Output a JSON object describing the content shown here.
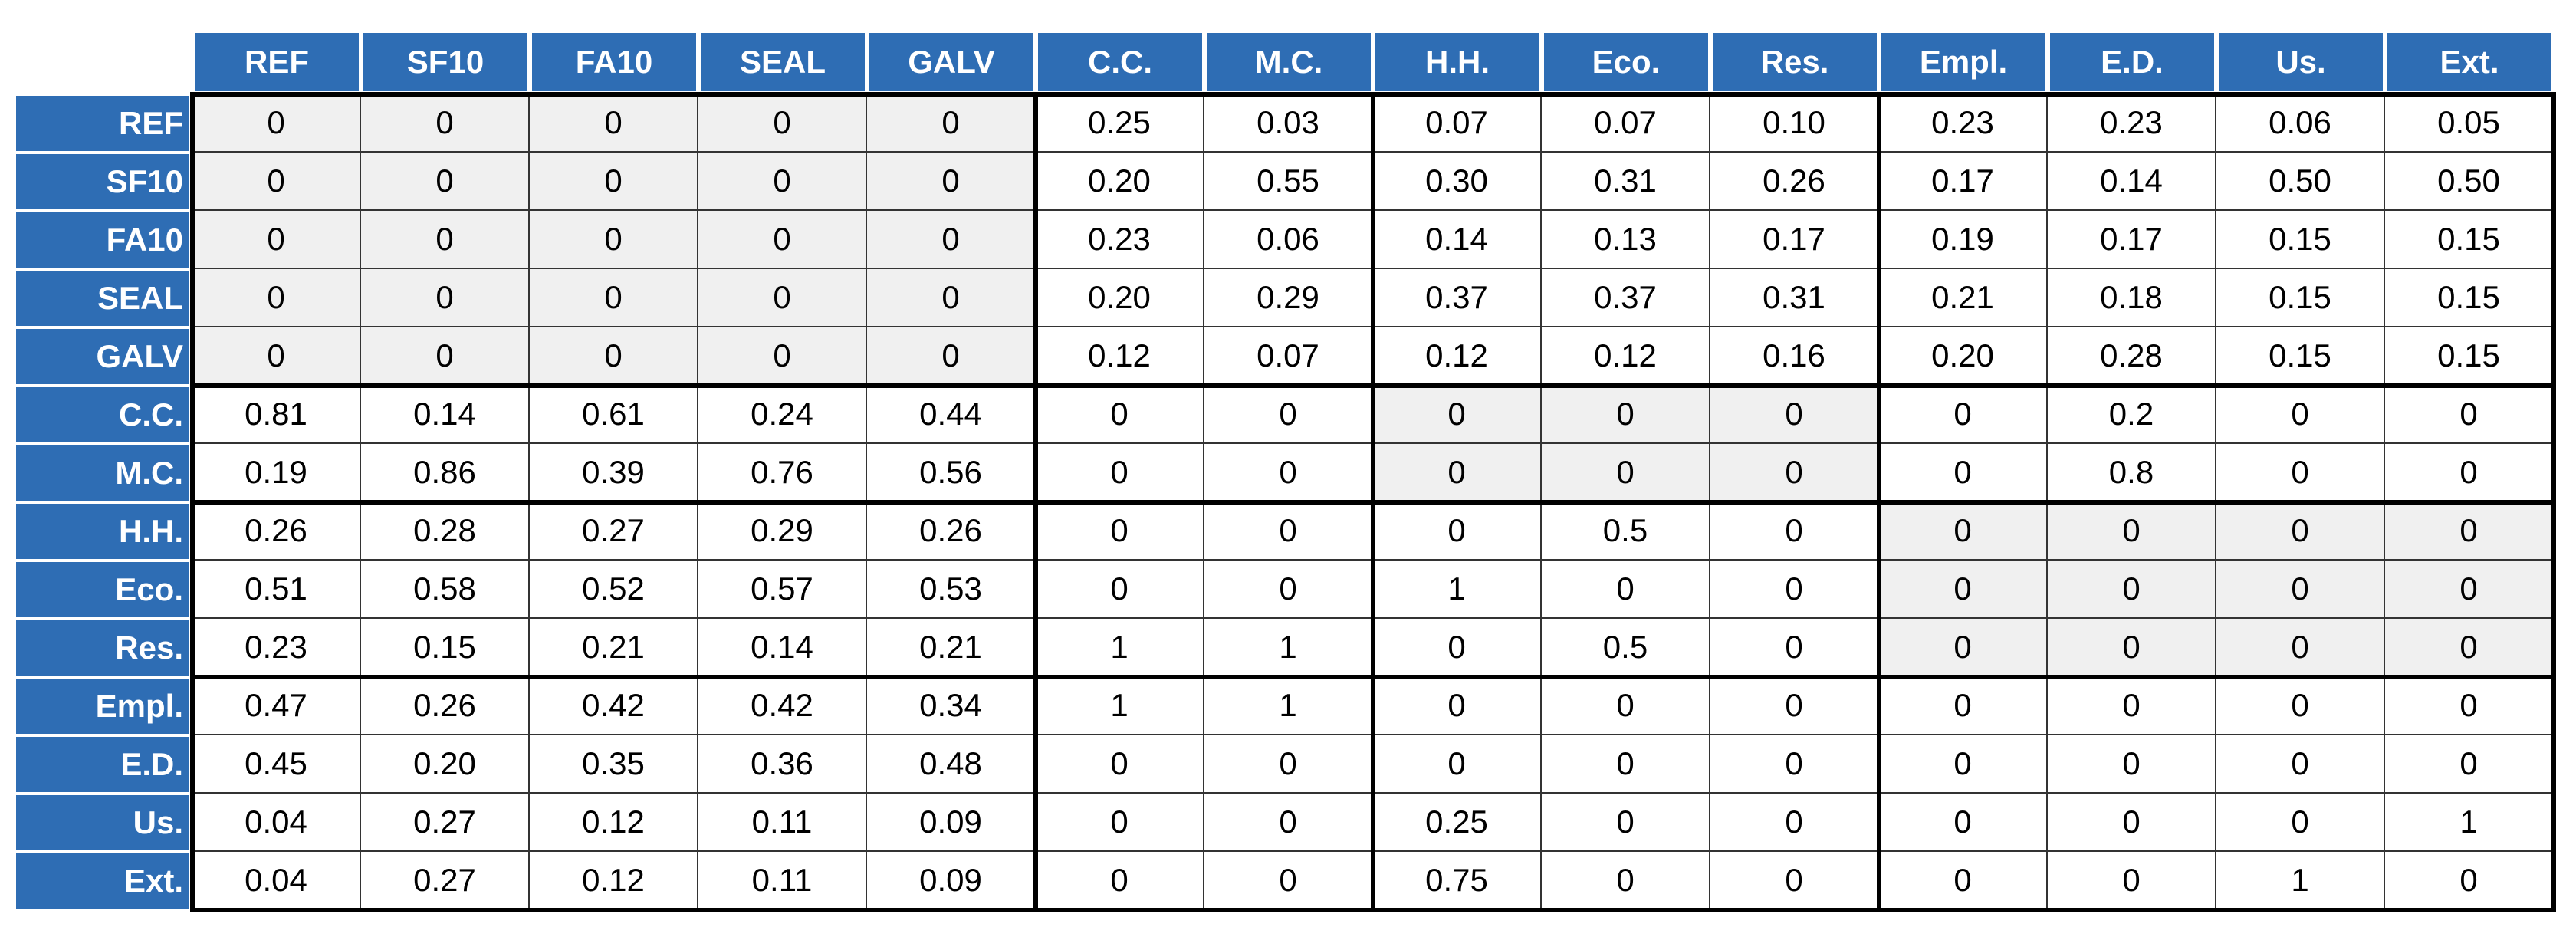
{
  "table": {
    "columns": [
      "REF",
      "SF10",
      "FA10",
      "SEAL",
      "GALV",
      "C.C.",
      "M.C.",
      "H.H.",
      "Eco.",
      "Res.",
      "Empl.",
      "E.D.",
      "Us.",
      "Ext."
    ],
    "rows": [
      {
        "label": "REF",
        "cells": [
          "0",
          "0",
          "0",
          "0",
          "0",
          "0.25",
          "0.03",
          "0.07",
          "0.07",
          "0.10",
          "0.23",
          "0.23",
          "0.06",
          "0.05"
        ]
      },
      {
        "label": "SF10",
        "cells": [
          "0",
          "0",
          "0",
          "0",
          "0",
          "0.20",
          "0.55",
          "0.30",
          "0.31",
          "0.26",
          "0.17",
          "0.14",
          "0.50",
          "0.50"
        ]
      },
      {
        "label": "FA10",
        "cells": [
          "0",
          "0",
          "0",
          "0",
          "0",
          "0.23",
          "0.06",
          "0.14",
          "0.13",
          "0.17",
          "0.19",
          "0.17",
          "0.15",
          "0.15"
        ]
      },
      {
        "label": "SEAL",
        "cells": [
          "0",
          "0",
          "0",
          "0",
          "0",
          "0.20",
          "0.29",
          "0.37",
          "0.37",
          "0.31",
          "0.21",
          "0.18",
          "0.15",
          "0.15"
        ]
      },
      {
        "label": "GALV",
        "cells": [
          "0",
          "0",
          "0",
          "0",
          "0",
          "0.12",
          "0.07",
          "0.12",
          "0.12",
          "0.16",
          "0.20",
          "0.28",
          "0.15",
          "0.15"
        ]
      },
      {
        "label": "C.C.",
        "cells": [
          "0.81",
          "0.14",
          "0.61",
          "0.24",
          "0.44",
          "0",
          "0",
          "0",
          "0",
          "0",
          "0",
          "0.2",
          "0",
          "0"
        ]
      },
      {
        "label": "M.C.",
        "cells": [
          "0.19",
          "0.86",
          "0.39",
          "0.76",
          "0.56",
          "0",
          "0",
          "0",
          "0",
          "0",
          "0",
          "0.8",
          "0",
          "0"
        ]
      },
      {
        "label": "H.H.",
        "cells": [
          "0.26",
          "0.28",
          "0.27",
          "0.29",
          "0.26",
          "0",
          "0",
          "0",
          "0.5",
          "0",
          "0",
          "0",
          "0",
          "0"
        ]
      },
      {
        "label": "Eco.",
        "cells": [
          "0.51",
          "0.58",
          "0.52",
          "0.57",
          "0.53",
          "0",
          "0",
          "1",
          "0",
          "0",
          "0",
          "0",
          "0",
          "0"
        ]
      },
      {
        "label": "Res.",
        "cells": [
          "0.23",
          "0.15",
          "0.21",
          "0.14",
          "0.21",
          "1",
          "1",
          "0",
          "0.5",
          "0",
          "0",
          "0",
          "0",
          "0"
        ]
      },
      {
        "label": "Empl.",
        "cells": [
          "0.47",
          "0.26",
          "0.42",
          "0.42",
          "0.34",
          "1",
          "1",
          "0",
          "0",
          "0",
          "0",
          "0",
          "0",
          "0"
        ]
      },
      {
        "label": "E.D.",
        "cells": [
          "0.45",
          "0.20",
          "0.35",
          "0.36",
          "0.48",
          "0",
          "0",
          "0",
          "0",
          "0",
          "0",
          "0",
          "0",
          "0"
        ]
      },
      {
        "label": "Us.",
        "cells": [
          "0.04",
          "0.27",
          "0.12",
          "0.11",
          "0.09",
          "0",
          "0",
          "0.25",
          "0",
          "0",
          "0",
          "0",
          "0",
          "1"
        ]
      },
      {
        "label": "Ext.",
        "cells": [
          "0.04",
          "0.27",
          "0.12",
          "0.11",
          "0.09",
          "0",
          "0",
          "0.75",
          "0",
          "0",
          "0",
          "0",
          "1",
          "0"
        ]
      }
    ]
  }
}
